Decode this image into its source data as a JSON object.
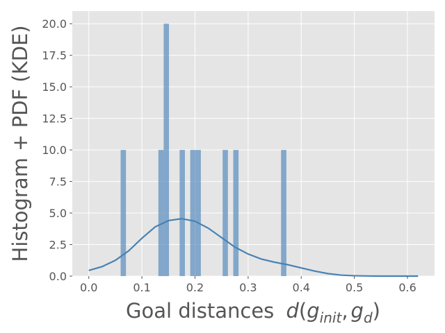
{
  "chart_data": {
    "type": "bar",
    "xlabel": "Goal distances",
    "xlabel_math": {
      "d": "d",
      "open": "(",
      "g1": "g",
      "sub1": "init",
      "comma": ",",
      "g2": "g",
      "sub2": "d",
      "close": ")"
    },
    "ylabel": "Histogram + PDF (KDE)",
    "xlim": [
      -0.031,
      0.651
    ],
    "ylim": [
      0,
      21
    ],
    "grid": true,
    "x_ticks": [
      "0.0",
      "0.1",
      "0.2",
      "0.3",
      "0.4",
      "0.5",
      "0.6"
    ],
    "y_ticks": [
      "0.0",
      "2.5",
      "5.0",
      "7.5",
      "10.0",
      "12.5",
      "15.0",
      "17.5",
      "20.0"
    ],
    "colors": {
      "bars": "#5b8fbf",
      "kde_line": "#4682b4",
      "plot_background": "#e5e5e5",
      "grid": "#ffffff",
      "text": "#555555"
    },
    "histogram": {
      "bin_width": 0.01,
      "bins": [
        {
          "x0": 0.06,
          "x1": 0.07,
          "value": 10
        },
        {
          "x0": 0.131,
          "x1": 0.141,
          "value": 10
        },
        {
          "x0": 0.141,
          "x1": 0.151,
          "value": 20
        },
        {
          "x0": 0.171,
          "x1": 0.181,
          "value": 10
        },
        {
          "x0": 0.191,
          "x1": 0.201,
          "value": 10
        },
        {
          "x0": 0.201,
          "x1": 0.211,
          "value": 10
        },
        {
          "x0": 0.252,
          "x1": 0.262,
          "value": 10
        },
        {
          "x0": 0.272,
          "x1": 0.282,
          "value": 10
        },
        {
          "x0": 0.362,
          "x1": 0.372,
          "value": 10
        }
      ]
    },
    "kde": {
      "x": [
        0.0,
        0.025,
        0.05,
        0.075,
        0.1,
        0.125,
        0.15,
        0.175,
        0.2,
        0.225,
        0.25,
        0.275,
        0.3,
        0.325,
        0.35,
        0.375,
        0.4,
        0.425,
        0.45,
        0.475,
        0.5,
        0.525,
        0.55,
        0.575,
        0.62
      ],
      "y": [
        0.45,
        0.75,
        1.25,
        2.0,
        3.0,
        3.9,
        4.4,
        4.55,
        4.35,
        3.8,
        3.05,
        2.3,
        1.75,
        1.35,
        1.1,
        0.9,
        0.65,
        0.4,
        0.2,
        0.08,
        0.03,
        0.01,
        0.0,
        0.0,
        0.0
      ]
    }
  }
}
